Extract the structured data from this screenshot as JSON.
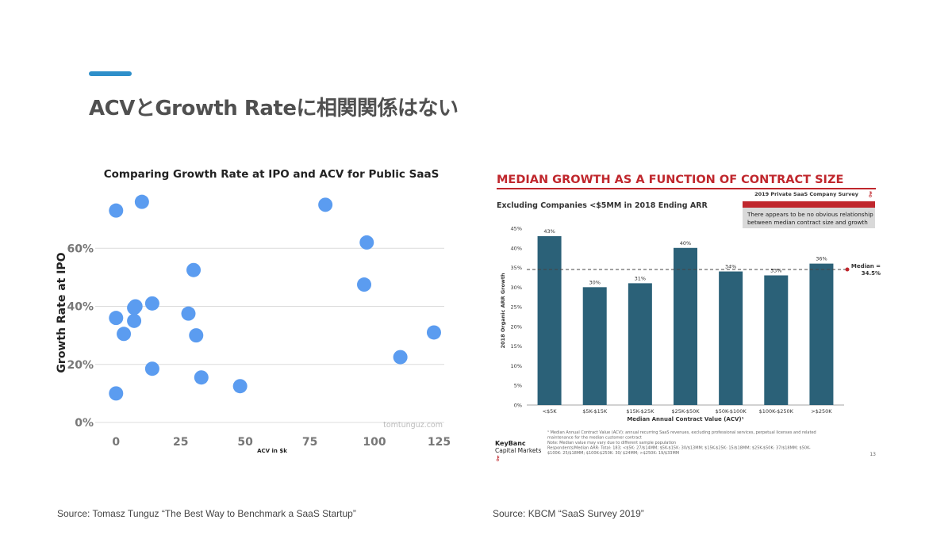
{
  "slide": {
    "title": "ACVとGrowth Rateに相関関係はない",
    "source_left": "Source: Tomasz Tunguz “The Best Way to Benchmark a SaaS Startup”",
    "source_right": "Source: KBCM “SaaS Survey 2019”",
    "accent_color": "#2e8fca"
  },
  "scatter": {
    "watermark": "tomtunguz.com"
  },
  "bar_panel": {
    "badge": "2019 Private SaaS Company Survey",
    "subtitle": "Excluding Companies <$5MM in 2018 Ending ARR",
    "callout": [
      "There appears to be no obvious relationship",
      "between median contract size and growth"
    ],
    "median_label": [
      "Median =",
      "34.5%"
    ],
    "footnotes": [
      "¹ Median Annual Contract Value (ACV): annual recurring SaaS revenues, excluding professional services, perpetual licenses and related",
      "maintenance for the median customer contract",
      "Note: Median value may vary due to different sample population",
      "Respondents/Median ARR: Total: 183; <$5K: 27/$14MM; $5K-$15K: 30/$13MM; $15K-$25K: 15/$18MM; $25K-$50K: 37/$18MM; $50K-",
      "$100K: 25/$18MM; $100K-$250K: 30/ $24MM; >$250K: 19/$33MM"
    ],
    "logo_line1": "KeyBanc",
    "logo_line2": "Capital Markets",
    "page_number": "13",
    "brand_red": "#c0272d",
    "bar_color": "#2b6178"
  },
  "chart_data": [
    {
      "type": "scatter",
      "title": "Comparing Growth Rate at IPO and ACV for Public SaaS",
      "xlabel": "ACV in $k",
      "ylabel": "Growth Rate at IPO",
      "xlim": [
        -5,
        127
      ],
      "ylim": [
        0,
        80
      ],
      "xticks": [
        0,
        25,
        50,
        75,
        100,
        125
      ],
      "yticks": [
        0,
        20,
        40,
        60
      ],
      "ytick_labels": [
        "0%",
        "20%",
        "40%",
        "60%"
      ],
      "grid": "horizontal",
      "color": "#5b9cf0",
      "points": [
        {
          "x": 0,
          "y": 73
        },
        {
          "x": 10,
          "y": 76
        },
        {
          "x": 81,
          "y": 75
        },
        {
          "x": 97,
          "y": 62
        },
        {
          "x": 30,
          "y": 52.5
        },
        {
          "x": 96,
          "y": 47.5
        },
        {
          "x": 14,
          "y": 41
        },
        {
          "x": 7.5,
          "y": 40
        },
        {
          "x": 7,
          "y": 39.5
        },
        {
          "x": 0,
          "y": 36
        },
        {
          "x": 28,
          "y": 37.5
        },
        {
          "x": 7,
          "y": 35
        },
        {
          "x": 3,
          "y": 30.5
        },
        {
          "x": 31,
          "y": 30
        },
        {
          "x": 123,
          "y": 31
        },
        {
          "x": 110,
          "y": 22.5
        },
        {
          "x": 14,
          "y": 18.5
        },
        {
          "x": 33,
          "y": 15.5
        },
        {
          "x": 48,
          "y": 12.5
        },
        {
          "x": 0,
          "y": 10
        }
      ]
    },
    {
      "type": "bar",
      "title": "MEDIAN GROWTH AS A FUNCTION OF CONTRACT SIZE",
      "xlabel": "Median Annual Contract Value (ACV)¹",
      "ylabel": "2018 Organic ARR Growth",
      "categories": [
        "<$5K",
        "$5K-$15K",
        "$15K-$25K",
        "$25K-$50K",
        "$50K-$100K",
        "$100K-$250K",
        ">$250K"
      ],
      "values": [
        43,
        30,
        31,
        40,
        34,
        33,
        36
      ],
      "data_labels": [
        "43%",
        "30%",
        "31%",
        "40%",
        "34%",
        "33%",
        "36%"
      ],
      "ylim": [
        0,
        45
      ],
      "yticks": [
        0,
        5,
        10,
        15,
        20,
        25,
        30,
        35,
        40,
        45
      ],
      "ytick_labels": [
        "0%",
        "5%",
        "10%",
        "15%",
        "20%",
        "25%",
        "30%",
        "35%",
        "40%",
        "45%"
      ],
      "median": 34.5
    }
  ]
}
